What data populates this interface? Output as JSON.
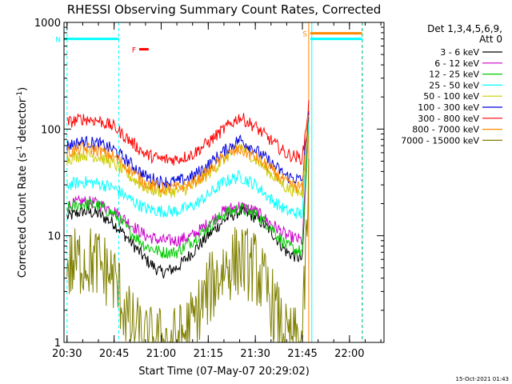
{
  "chart_data": {
    "type": "line",
    "title": "RHESSI Observing Summary Count Rates, Corrected",
    "xlabel": "Start Time (07-May-07 20:29:02)",
    "ylabel_main": "Corrected Count Rate (s",
    "ylabel_sup1": "-1",
    "ylabel_mid": " detector",
    "ylabel_sup2": "-1",
    "ylabel_end": ")",
    "yscale": "log",
    "ylim": [
      1,
      1000
    ],
    "xlim": [
      "20:29:02",
      "22:11:00"
    ],
    "x_ticks": [
      "20:30",
      "20:45",
      "21:00",
      "21:15",
      "21:30",
      "21:45",
      "22:00"
    ],
    "y_ticks": [
      "1",
      "10",
      "100",
      "1000"
    ],
    "timestamp": "15-Oct-2021 01:43",
    "legend": {
      "header_line1": "Det 1,3,4,5,6,9,",
      "header_line2": "Att 0",
      "position": "top-right"
    },
    "series": [
      {
        "name": "3 - 6 keV",
        "color": "#000000",
        "x": [
          "20:30",
          "20:35",
          "20:40",
          "20:45",
          "20:50",
          "20:55",
          "21:00",
          "21:05",
          "21:10",
          "21:15",
          "21:20",
          "21:25",
          "21:30",
          "21:35",
          "21:40",
          "21:45",
          "21:47"
        ],
        "values": [
          15,
          17,
          16,
          13,
          9,
          6,
          4.5,
          5,
          7,
          10,
          14,
          17,
          15,
          11,
          7,
          6,
          150
        ]
      },
      {
        "name": "6 - 12 keV",
        "color": "#cc00cc",
        "x": [
          "20:30",
          "20:35",
          "20:40",
          "20:45",
          "20:50",
          "20:55",
          "21:00",
          "21:05",
          "21:10",
          "21:15",
          "21:20",
          "21:25",
          "21:30",
          "21:35",
          "21:40",
          "21:45",
          "21:47"
        ],
        "values": [
          19,
          21,
          20,
          17,
          13,
          10,
          9,
          9,
          10,
          13,
          17,
          19,
          17,
          13,
          10,
          9,
          120
        ]
      },
      {
        "name": "12 - 25 keV",
        "color": "#00cc00",
        "x": [
          "20:30",
          "20:35",
          "20:40",
          "20:45",
          "20:50",
          "20:55",
          "21:00",
          "21:05",
          "21:10",
          "21:15",
          "21:20",
          "21:25",
          "21:30",
          "21:35",
          "21:40",
          "21:45",
          "21:47"
        ],
        "values": [
          18,
          20,
          19,
          16,
          11,
          8,
          7,
          7,
          9,
          12,
          16,
          18,
          16,
          12,
          8,
          7,
          110
        ]
      },
      {
        "name": "25 - 50 keV",
        "color": "#00ffff",
        "x": [
          "20:30",
          "20:35",
          "20:40",
          "20:45",
          "20:50",
          "20:55",
          "21:00",
          "21:05",
          "21:10",
          "21:15",
          "21:20",
          "21:25",
          "21:30",
          "21:35",
          "21:40",
          "21:45",
          "21:47"
        ],
        "values": [
          30,
          32,
          31,
          28,
          22,
          18,
          17,
          17,
          19,
          24,
          32,
          36,
          30,
          22,
          17,
          16,
          130
        ]
      },
      {
        "name": "50 - 100 keV",
        "color": "#cccc00",
        "x": [
          "20:30",
          "20:35",
          "20:40",
          "20:45",
          "20:50",
          "20:55",
          "21:00",
          "21:05",
          "21:10",
          "21:15",
          "21:20",
          "21:25",
          "21:30",
          "21:35",
          "21:40",
          "21:45",
          "21:47"
        ],
        "values": [
          52,
          58,
          55,
          47,
          36,
          28,
          26,
          26,
          29,
          38,
          52,
          70,
          52,
          38,
          28,
          25,
          140
        ]
      },
      {
        "name": "100 - 300 keV",
        "color": "#0000dd",
        "x": [
          "20:30",
          "20:35",
          "20:40",
          "20:45",
          "20:50",
          "20:55",
          "21:00",
          "21:05",
          "21:10",
          "21:15",
          "21:20",
          "21:25",
          "21:30",
          "21:35",
          "21:40",
          "21:45",
          "21:47"
        ],
        "values": [
          70,
          76,
          73,
          64,
          48,
          36,
          32,
          32,
          36,
          46,
          62,
          80,
          64,
          48,
          36,
          33,
          150
        ]
      },
      {
        "name": "300 - 800 keV",
        "color": "#ff0000",
        "x": [
          "20:30",
          "20:35",
          "20:40",
          "20:45",
          "20:50",
          "20:55",
          "21:00",
          "21:05",
          "21:10",
          "21:15",
          "21:20",
          "21:25",
          "21:30",
          "21:35",
          "21:40",
          "21:45",
          "21:47"
        ],
        "values": [
          115,
          125,
          120,
          105,
          78,
          58,
          52,
          52,
          58,
          75,
          100,
          130,
          105,
          78,
          58,
          53,
          170
        ]
      },
      {
        "name": "800 - 7000 keV",
        "color": "#ff8800",
        "x": [
          "20:30",
          "20:35",
          "20:40",
          "20:45",
          "20:50",
          "20:55",
          "21:00",
          "21:05",
          "21:10",
          "21:15",
          "21:20",
          "21:25",
          "21:30",
          "21:35",
          "21:40",
          "21:45",
          "21:47"
        ],
        "values": [
          60,
          66,
          63,
          55,
          42,
          31,
          28,
          28,
          31,
          40,
          55,
          64,
          55,
          42,
          31,
          28,
          150
        ]
      },
      {
        "name": "7000 - 15000 keV",
        "color": "#808000",
        "x": [
          "20:30",
          "20:35",
          "20:40",
          "20:45",
          "20:50",
          "20:55",
          "21:00",
          "21:05",
          "21:10",
          "21:15",
          "21:20",
          "21:25",
          "21:30",
          "21:35",
          "21:40",
          "21:45",
          "21:47"
        ],
        "values": [
          5,
          6,
          5.5,
          4,
          1.5,
          1,
          1,
          1,
          1.5,
          3,
          5,
          6,
          5,
          2.5,
          1,
          1,
          30
        ]
      }
    ],
    "flag_bars": [
      {
        "label": "N",
        "color": "#00ffff",
        "start": "20:29:02",
        "end": "20:46:30",
        "y": 700
      },
      {
        "label": "F",
        "color": "#ff0000",
        "start": "20:53:00",
        "end": "20:56:00",
        "y": 560
      },
      {
        "label": "S",
        "color": "#ff8800",
        "start": "21:47:30",
        "end": "22:04:00",
        "y": 790
      },
      {
        "label": "",
        "color": "#00ffff",
        "start": "21:47:30",
        "end": "22:04:00",
        "y": 700
      }
    ],
    "vertical_markers": [
      {
        "time": "20:30:00",
        "color": "#00ffff",
        "style": "dashed"
      },
      {
        "time": "20:46:30",
        "color": "#00ffff",
        "style": "dashed"
      },
      {
        "time": "21:47:00",
        "color": "#ff8800",
        "style": "solid"
      },
      {
        "time": "21:48:00",
        "color": "#00ffff",
        "style": "solid"
      },
      {
        "time": "22:04:00",
        "color": "#ff8800",
        "style": "dashed"
      },
      {
        "time": "22:04:10",
        "color": "#00ffff",
        "style": "dashed"
      }
    ]
  }
}
